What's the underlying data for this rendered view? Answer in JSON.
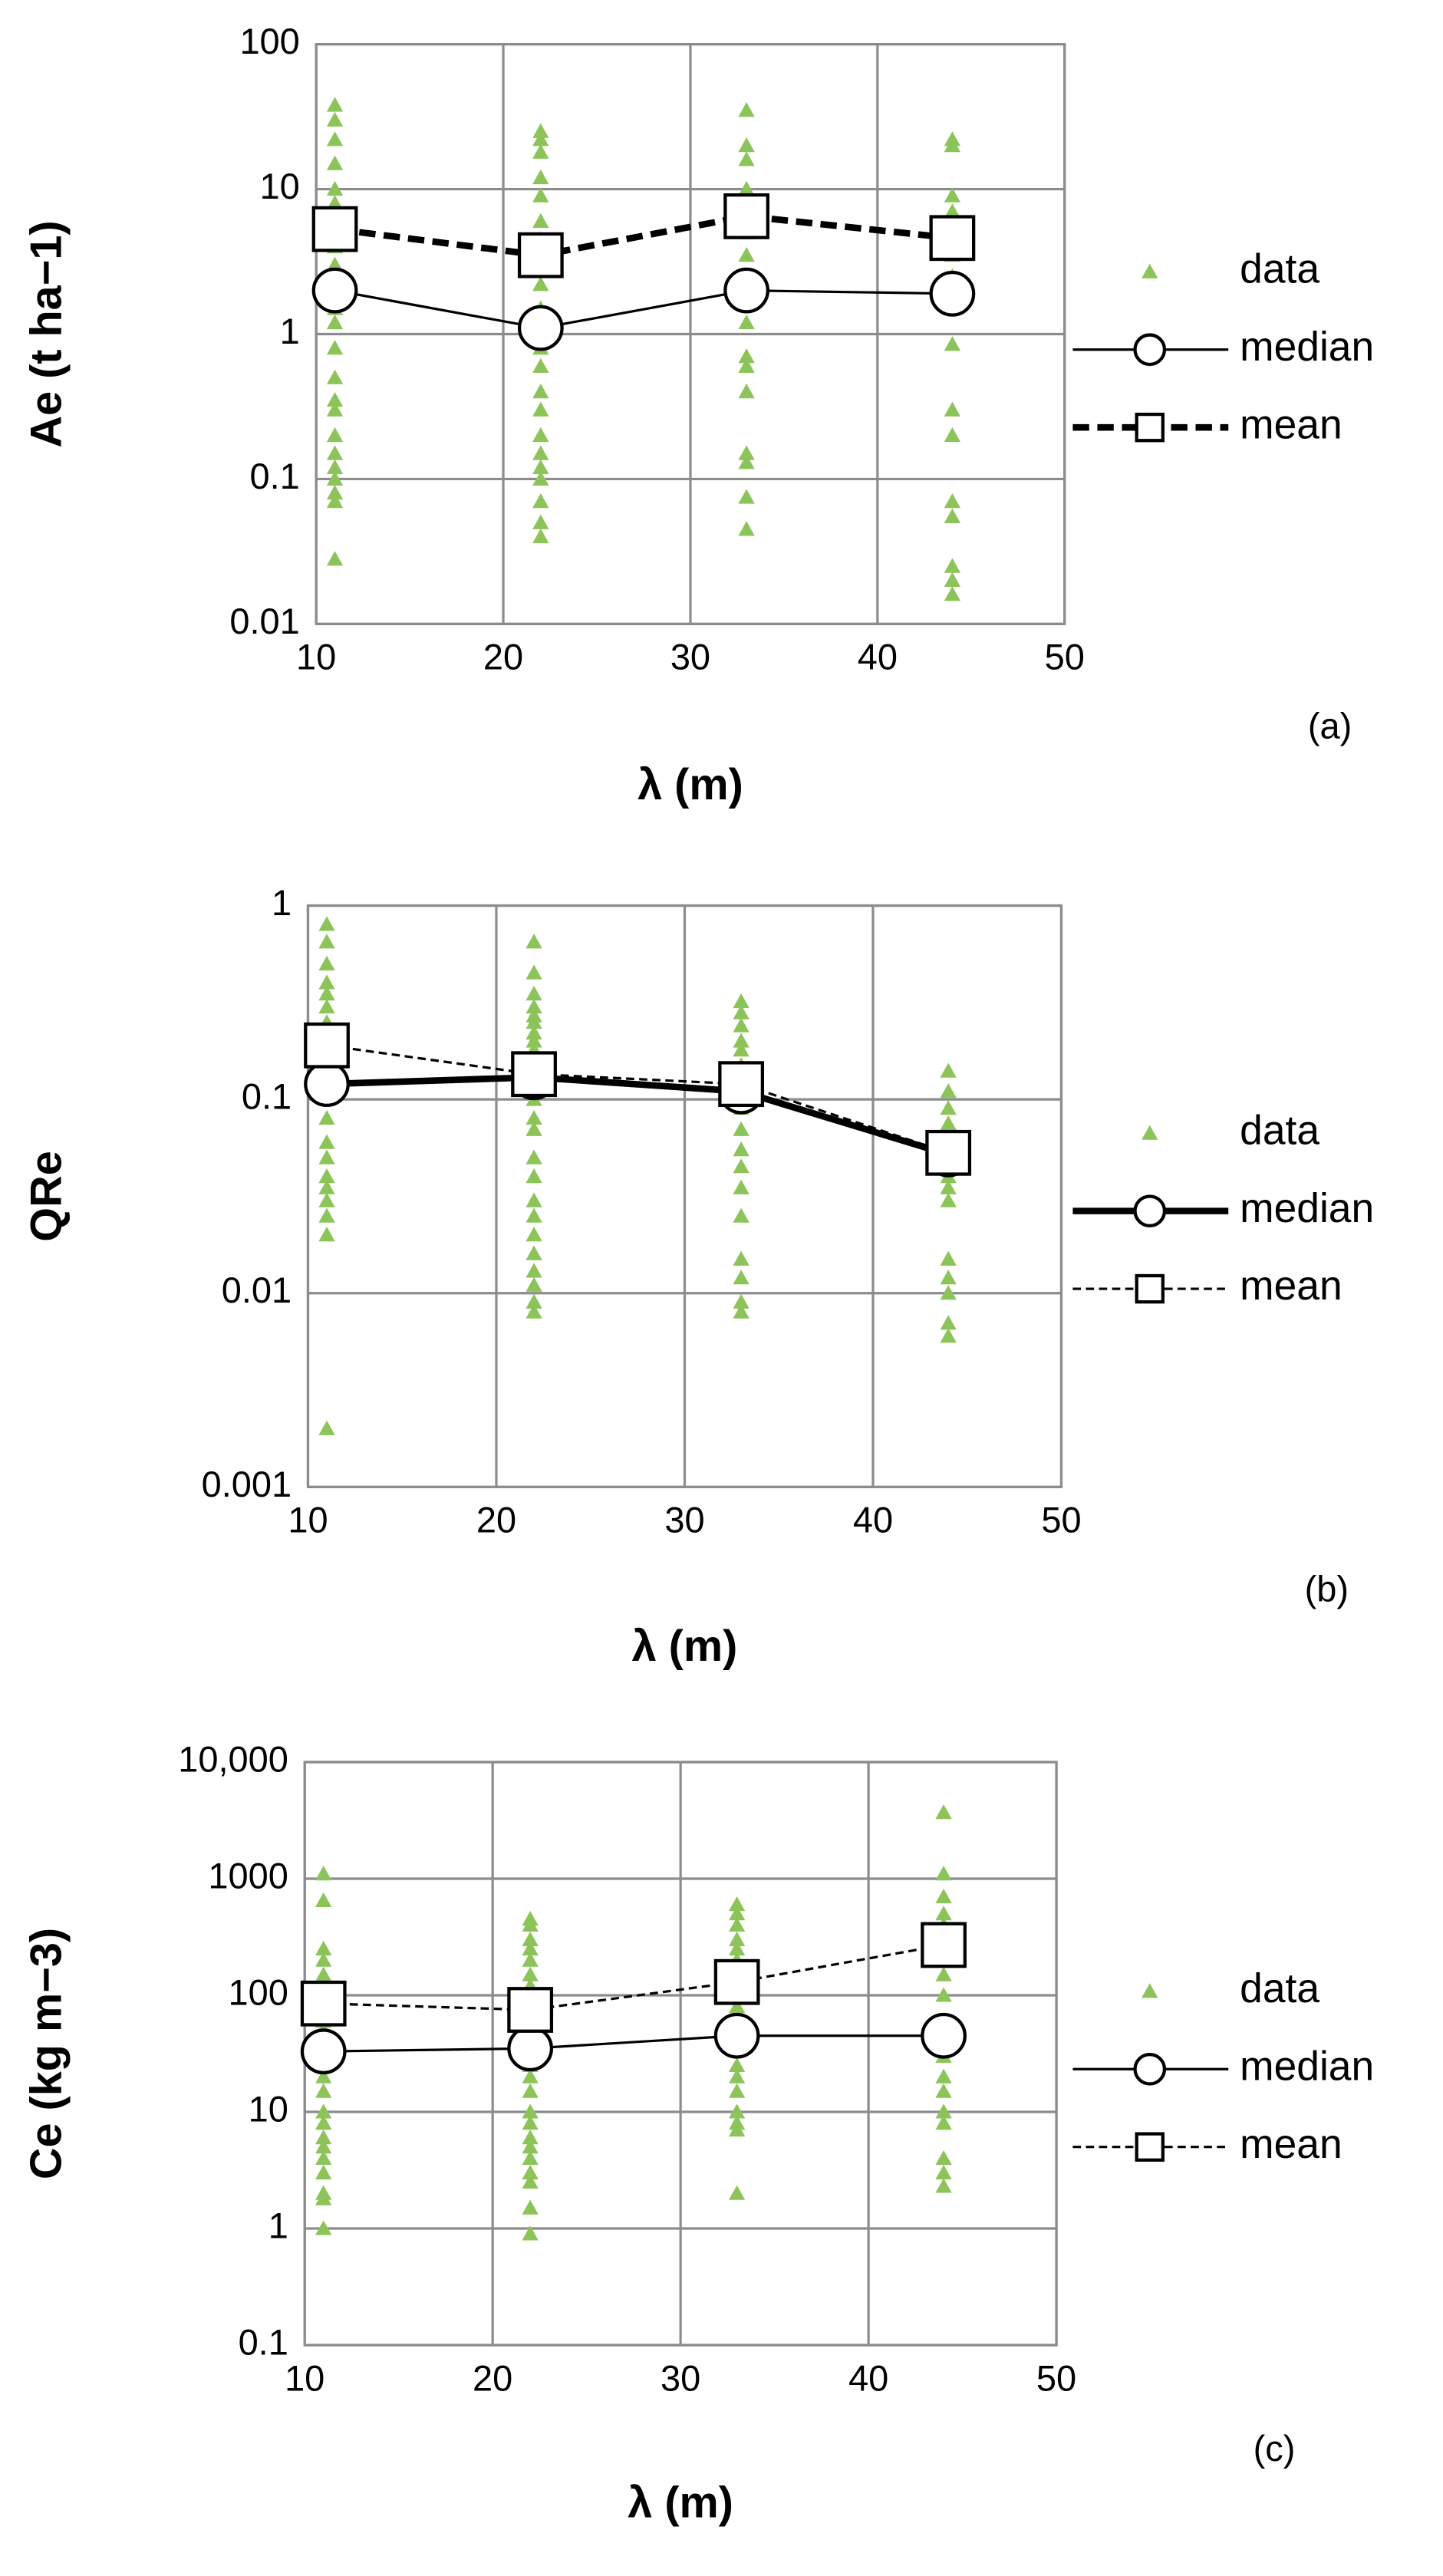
{
  "chart_data": [
    {
      "type": "scatter",
      "ylabel": "Ae (t ha−1)",
      "xlabel": "λ (m)",
      "annotation": "(a)",
      "yscale": "log",
      "grid": true,
      "xlim": [
        10,
        50
      ],
      "xticks": [
        10,
        20,
        30,
        40,
        50
      ],
      "ylim": [
        0.01,
        100
      ],
      "yticks": [
        0.01,
        0.1,
        1,
        10,
        100
      ],
      "series": [
        {
          "name": "data",
          "color": "#8dc45a",
          "marker": "triangle",
          "line": "none",
          "x": [
            11,
            11,
            11,
            11,
            11,
            11,
            11,
            11,
            11,
            11,
            11,
            11,
            11,
            11,
            11,
            11,
            11,
            11,
            11,
            11,
            11,
            11,
            11,
            11,
            22,
            22,
            22,
            22,
            22,
            22,
            22,
            22,
            22,
            22,
            22,
            22,
            22,
            22,
            22,
            22,
            22,
            22,
            22,
            22,
            22,
            22,
            33,
            33,
            33,
            33,
            33,
            33,
            33,
            33,
            33,
            33,
            33,
            33,
            33,
            33,
            33,
            33,
            44,
            44,
            44,
            44,
            44,
            44,
            44,
            44,
            44,
            44,
            44,
            44,
            44,
            44,
            44,
            44
          ],
          "values": [
            38,
            30,
            22,
            15,
            10,
            8,
            6,
            4,
            3,
            2.5,
            2,
            1.5,
            1.2,
            0.8,
            0.5,
            0.35,
            0.3,
            0.2,
            0.15,
            0.12,
            0.1,
            0.08,
            0.07,
            0.028,
            25,
            22,
            18,
            12,
            9,
            6,
            4.5,
            3,
            2.2,
            1.5,
            1,
            0.8,
            0.6,
            0.4,
            0.3,
            0.2,
            0.15,
            0.12,
            0.1,
            0.07,
            0.05,
            0.04,
            35,
            20,
            16,
            10,
            5,
            3.5,
            2.5,
            1.8,
            1.2,
            0.7,
            0.6,
            0.4,
            0.15,
            0.13,
            0.075,
            0.045,
            22,
            20,
            9,
            7,
            5,
            3.5,
            2.5,
            1.5,
            0.85,
            0.3,
            0.2,
            0.07,
            0.055,
            0.025,
            0.02,
            0.016
          ]
        },
        {
          "name": "median",
          "color": "#000000",
          "marker": "circle",
          "line": "solid",
          "line_width": 1.5,
          "x": [
            11,
            22,
            33,
            44
          ],
          "values": [
            2.0,
            1.1,
            2.0,
            1.9
          ]
        },
        {
          "name": "mean",
          "color": "#000000",
          "marker": "square",
          "line": "dashed",
          "line_width": 4,
          "x": [
            11,
            22,
            33,
            44
          ],
          "values": [
            5.3,
            3.5,
            6.5,
            4.6
          ]
        }
      ]
    },
    {
      "type": "scatter",
      "ylabel": "QRe",
      "xlabel": "λ (m)",
      "annotation": "(b)",
      "yscale": "log",
      "grid": true,
      "xlim": [
        10,
        50
      ],
      "xticks": [
        10,
        20,
        30,
        40,
        50
      ],
      "ylim": [
        0.001,
        1
      ],
      "yticks": [
        0.001,
        0.01,
        0.1,
        1
      ],
      "series": [
        {
          "name": "data",
          "color": "#8dc45a",
          "marker": "triangle",
          "line": "none",
          "x": [
            11,
            11,
            11,
            11,
            11,
            11,
            11,
            11,
            11,
            11,
            11,
            11,
            11,
            11,
            11,
            11,
            11,
            11,
            11,
            11,
            11,
            22,
            22,
            22,
            22,
            22,
            22,
            22,
            22,
            22,
            22,
            22,
            22,
            22,
            22,
            22,
            22,
            22,
            22,
            22,
            22,
            22,
            22,
            22,
            22,
            33,
            33,
            33,
            33,
            33,
            33,
            33,
            33,
            33,
            33,
            33,
            33,
            33,
            33,
            33,
            33,
            33,
            33,
            44,
            44,
            44,
            44,
            44,
            44,
            44,
            44,
            44,
            44,
            44,
            44,
            44,
            44,
            44
          ],
          "values": [
            0.8,
            0.65,
            0.5,
            0.4,
            0.35,
            0.3,
            0.25,
            0.2,
            0.18,
            0.15,
            0.12,
            0.1,
            0.08,
            0.06,
            0.05,
            0.04,
            0.035,
            0.03,
            0.025,
            0.02,
            0.002,
            0.65,
            0.45,
            0.35,
            0.3,
            0.27,
            0.25,
            0.22,
            0.2,
            0.18,
            0.15,
            0.12,
            0.1,
            0.08,
            0.07,
            0.05,
            0.04,
            0.03,
            0.025,
            0.02,
            0.016,
            0.013,
            0.011,
            0.009,
            0.008,
            0.32,
            0.28,
            0.24,
            0.2,
            0.18,
            0.15,
            0.12,
            0.1,
            0.09,
            0.07,
            0.055,
            0.045,
            0.035,
            0.025,
            0.015,
            0.012,
            0.009,
            0.008,
            0.14,
            0.11,
            0.09,
            0.075,
            0.065,
            0.05,
            0.045,
            0.04,
            0.035,
            0.03,
            0.015,
            0.012,
            0.01,
            0.007,
            0.006
          ]
        },
        {
          "name": "median",
          "color": "#000000",
          "marker": "circle",
          "line": "solid",
          "line_width": 4,
          "x": [
            11,
            22,
            33,
            44
          ],
          "values": [
            0.12,
            0.13,
            0.11,
            0.052
          ]
        },
        {
          "name": "mean",
          "color": "#000000",
          "marker": "square",
          "line": "dashed",
          "line_width": 1.5,
          "x": [
            11,
            22,
            33,
            44
          ],
          "values": [
            0.19,
            0.135,
            0.12,
            0.053
          ]
        }
      ]
    },
    {
      "type": "scatter",
      "ylabel": "Ce (kg m−3)",
      "xlabel": "λ (m)",
      "annotation": "(c)",
      "yscale": "log",
      "grid": true,
      "xlim": [
        10,
        50
      ],
      "xticks": [
        10,
        20,
        30,
        40,
        50
      ],
      "ylim": [
        0.1,
        10000
      ],
      "yticks": [
        0.1,
        1,
        10,
        100,
        1000,
        {
          "value": 10000,
          "label": "10,000"
        }
      ],
      "series": [
        {
          "name": "data",
          "color": "#8dc45a",
          "marker": "triangle",
          "line": "none",
          "x": [
            11,
            11,
            11,
            11,
            11,
            11,
            11,
            11,
            11,
            11,
            11,
            11,
            11,
            11,
            11,
            11,
            11,
            11,
            11,
            11,
            11,
            11,
            11,
            11,
            22,
            22,
            22,
            22,
            22,
            22,
            22,
            22,
            22,
            22,
            22,
            22,
            22,
            22,
            22,
            22,
            22,
            22,
            22,
            22,
            22,
            22,
            22,
            22,
            22,
            33,
            33,
            33,
            33,
            33,
            33,
            33,
            33,
            33,
            33,
            33,
            33,
            33,
            33,
            33,
            33,
            33,
            33,
            33,
            44,
            44,
            44,
            44,
            44,
            44,
            44,
            44,
            44,
            44,
            44,
            44,
            44,
            44,
            44,
            44,
            44,
            44,
            44
          ],
          "values": [
            1100,
            650,
            250,
            200,
            150,
            120,
            100,
            80,
            60,
            50,
            40,
            30,
            25,
            20,
            15,
            10,
            8,
            6,
            5,
            4,
            3,
            2,
            1.8,
            1,
            450,
            400,
            300,
            250,
            200,
            150,
            120,
            100,
            80,
            60,
            50,
            40,
            30,
            25,
            20,
            15,
            10,
            8,
            6,
            5,
            4,
            3,
            2.5,
            1.5,
            0.9,
            600,
            500,
            400,
            300,
            250,
            200,
            150,
            100,
            80,
            60,
            45,
            35,
            25,
            20,
            15,
            10,
            8,
            7,
            2,
            3700,
            1100,
            700,
            500,
            400,
            300,
            200,
            150,
            100,
            60,
            40,
            30,
            20,
            15,
            10,
            8,
            4,
            3,
            2.3
          ]
        },
        {
          "name": "median",
          "color": "#000000",
          "marker": "circle",
          "line": "solid",
          "line_width": 1.5,
          "x": [
            11,
            22,
            33,
            44
          ],
          "values": [
            33,
            35,
            45,
            45
          ]
        },
        {
          "name": "mean",
          "color": "#000000",
          "marker": "square",
          "line": "dashed",
          "line_width": 1.5,
          "x": [
            11,
            22,
            33,
            44
          ],
          "values": [
            85,
            75,
            130,
            270
          ]
        }
      ]
    }
  ]
}
